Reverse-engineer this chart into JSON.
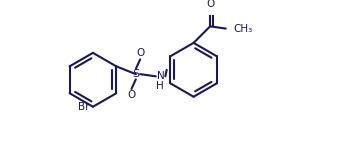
{
  "bg_color": "#ffffff",
  "line_color": "#1a1a4e",
  "line_width": 1.5,
  "fig_width": 3.64,
  "fig_height": 1.5,
  "dpi": 100,
  "xlim": [
    0.0,
    6.5
  ],
  "ylim": [
    -0.3,
    2.8
  ]
}
